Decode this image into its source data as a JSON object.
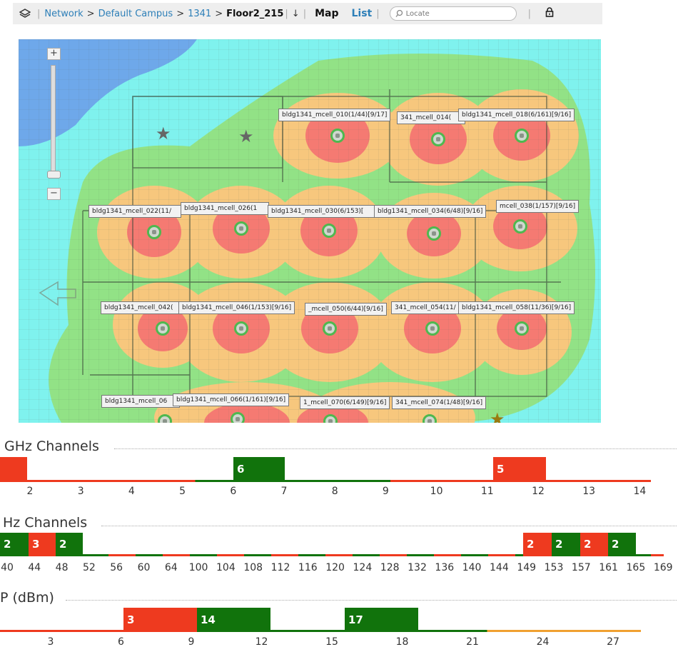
{
  "topbar": {
    "layers_icon": "layers-icon",
    "breadcrumb": [
      "Network",
      "Default Campus",
      "1341"
    ],
    "separator": ">",
    "current": "Floor2_215",
    "download_icon": "↓",
    "map_label": "Map",
    "list_label": "List",
    "search_placeholder": "Locate",
    "lock_icon": "lock-icon"
  },
  "map": {
    "zoom_in": "+",
    "zoom_out": "−",
    "access_points": [
      {
        "label": "bldg1341_mcell_010(1/44)[9/17]"
      },
      {
        "label": "341_mcell_014("
      },
      {
        "label": "bldg1341_mcell_018(6/161)[9/16]"
      },
      {
        "label": "bldg1341_mcell_022(11/"
      },
      {
        "label": "bldg1341_mcell_026(1"
      },
      {
        "label": "bldg1341_mcell_030(6/153)["
      },
      {
        "label": "bldg1341_mcell_034(6/48)[9/16]"
      },
      {
        "label": "mcell_038(1/157)[9/16]"
      },
      {
        "label": "bldg1341_mcell_042("
      },
      {
        "label": "bldg1341_mcell_046(1/153)[9/16]"
      },
      {
        "label": "_mcell_050(6/44)[9/16]"
      },
      {
        "label": "341_mcell_054(11/"
      },
      {
        "label": "bldg1341_mcell_058(11/36)[9/16]"
      },
      {
        "label": "bldg1341_mcell_06"
      },
      {
        "label": "bldg1341_mcell_066(1/161)[9/16]"
      },
      {
        "label": "1_mcell_070(6/149)[9/16]"
      },
      {
        "label": "341_mcell_074(1/48)[9/16]"
      }
    ]
  },
  "channels_24": {
    "title": "GHz Channels",
    "ticks": [
      "2",
      "3",
      "4",
      "5",
      "6",
      "7",
      "8",
      "9",
      "10",
      "11",
      "12",
      "13",
      "14"
    ],
    "bars": [
      {
        "label": "",
        "color": "#ee3a1f"
      },
      {
        "label": "6",
        "color": "#11730c"
      },
      {
        "label": "5",
        "color": "#ee3a1f"
      }
    ]
  },
  "channels_5": {
    "title": "Hz Channels",
    "ticks": [
      "40",
      "44",
      "48",
      "52",
      "56",
      "60",
      "64",
      "100",
      "104",
      "108",
      "112",
      "116",
      "120",
      "124",
      "128",
      "132",
      "136",
      "140",
      "144",
      "149",
      "153",
      "157",
      "161",
      "165",
      "169"
    ],
    "bars": [
      {
        "label": "2",
        "color": "#11730c"
      },
      {
        "label": "3",
        "color": "#ee3a1f"
      },
      {
        "label": "2",
        "color": "#11730c"
      },
      {
        "label": "2",
        "color": "#ee3a1f"
      },
      {
        "label": "2",
        "color": "#11730c"
      },
      {
        "label": "2",
        "color": "#ee3a1f"
      },
      {
        "label": "2",
        "color": "#11730c"
      }
    ]
  },
  "tx_power": {
    "title": "P (dBm)",
    "ticks": [
      "3",
      "6",
      "9",
      "12",
      "15",
      "18",
      "21",
      "24",
      "27"
    ],
    "bars": [
      {
        "label": "3",
        "color": "#ee3a1f"
      },
      {
        "label": "14",
        "color": "#11730c"
      },
      {
        "label": "17",
        "color": "#11730c"
      }
    ]
  },
  "colors": {
    "red": "#ee3a1f",
    "green": "#11730c",
    "orange": "#f0a030",
    "link": "#2d7fb8"
  }
}
